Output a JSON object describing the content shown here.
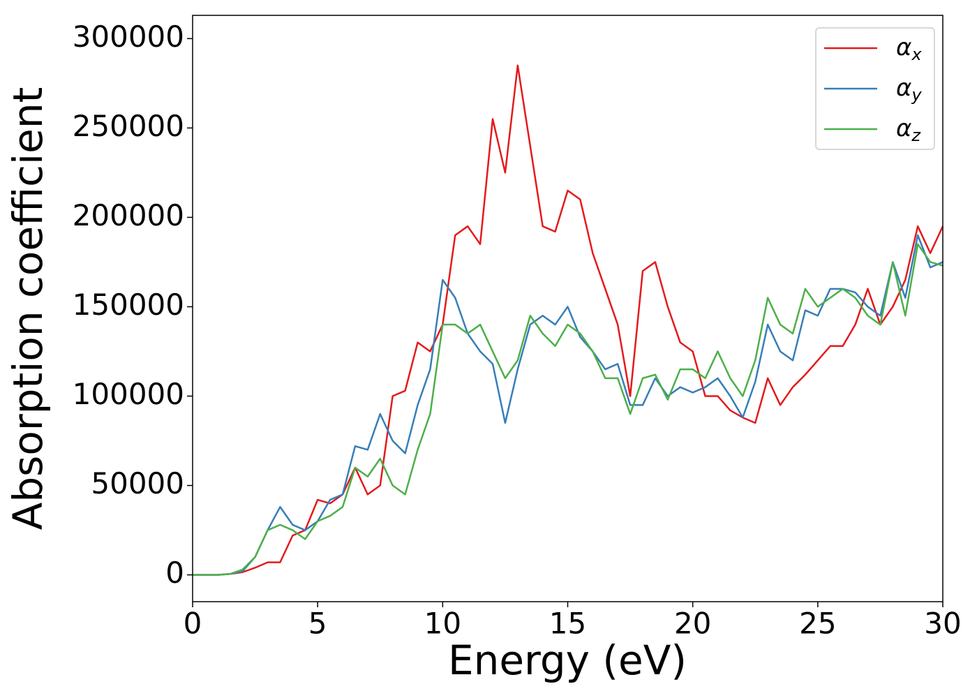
{
  "chart_data": {
    "type": "line",
    "xlabel": "Energy (eV)",
    "ylabel": "Absorption coefficient",
    "x": [
      0,
      0.5,
      1,
      1.5,
      2,
      2.5,
      3,
      3.5,
      4,
      4.5,
      5,
      5.5,
      6,
      6.5,
      7,
      7.5,
      8,
      8.5,
      9,
      9.5,
      10,
      10.5,
      11,
      11.5,
      12,
      12.5,
      13,
      13.5,
      14,
      14.5,
      15,
      15.5,
      16,
      16.5,
      17,
      17.5,
      18,
      18.5,
      19,
      19.5,
      20,
      20.5,
      21,
      21.5,
      22,
      22.5,
      23,
      23.5,
      24,
      24.5,
      25,
      25.5,
      26,
      26.5,
      27,
      27.5,
      28,
      28.5,
      29,
      29.5,
      30
    ],
    "series": [
      {
        "name": "αx",
        "color": "#e41a1c",
        "values": [
          0,
          0,
          0,
          500,
          1500,
          4000,
          7000,
          7000,
          22000,
          25000,
          42000,
          40000,
          45000,
          60000,
          45000,
          50000,
          100000,
          103000,
          130000,
          125000,
          140000,
          190000,
          195000,
          185000,
          255000,
          225000,
          285000,
          240000,
          195000,
          192000,
          215000,
          210000,
          180000,
          160000,
          140000,
          100000,
          170000,
          175000,
          150000,
          130000,
          125000,
          100000,
          100000,
          92000,
          88000,
          85000,
          110000,
          95000,
          105000,
          112000,
          120000,
          128000,
          128000,
          140000,
          160000,
          140000,
          150000,
          165000,
          195000,
          180000,
          195000
        ]
      },
      {
        "name": "αy",
        "color": "#377eb8",
        "values": [
          0,
          0,
          0,
          500,
          2000,
          10000,
          25000,
          38000,
          28000,
          25000,
          30000,
          42000,
          45000,
          72000,
          70000,
          90000,
          75000,
          68000,
          95000,
          115000,
          165000,
          155000,
          135000,
          125000,
          118000,
          85000,
          115000,
          140000,
          145000,
          140000,
          150000,
          133000,
          125000,
          115000,
          118000,
          95000,
          95000,
          110000,
          100000,
          105000,
          102000,
          105000,
          110000,
          100000,
          88000,
          108000,
          140000,
          125000,
          120000,
          148000,
          145000,
          160000,
          160000,
          158000,
          150000,
          145000,
          175000,
          155000,
          190000,
          172000,
          175000
        ]
      },
      {
        "name": "αz",
        "color": "#4daf4a",
        "values": [
          0,
          0,
          0,
          500,
          3000,
          10000,
          25000,
          28000,
          25000,
          20000,
          30000,
          33000,
          38000,
          60000,
          55000,
          65000,
          50000,
          45000,
          70000,
          90000,
          140000,
          140000,
          135000,
          140000,
          125000,
          110000,
          120000,
          145000,
          135000,
          128000,
          140000,
          135000,
          125000,
          110000,
          110000,
          90000,
          110000,
          112000,
          98000,
          115000,
          115000,
          110000,
          125000,
          110000,
          100000,
          120000,
          155000,
          140000,
          135000,
          160000,
          150000,
          155000,
          160000,
          155000,
          145000,
          140000,
          175000,
          145000,
          185000,
          175000,
          173000
        ]
      }
    ],
    "xlim": [
      0,
      30
    ],
    "xticks": [
      0,
      5,
      10,
      15,
      20,
      25,
      30
    ],
    "ylim": [
      -15000,
      313000
    ],
    "yticks": [
      0,
      50000,
      100000,
      150000,
      200000,
      250000,
      300000
    ],
    "legend": "upper right"
  }
}
